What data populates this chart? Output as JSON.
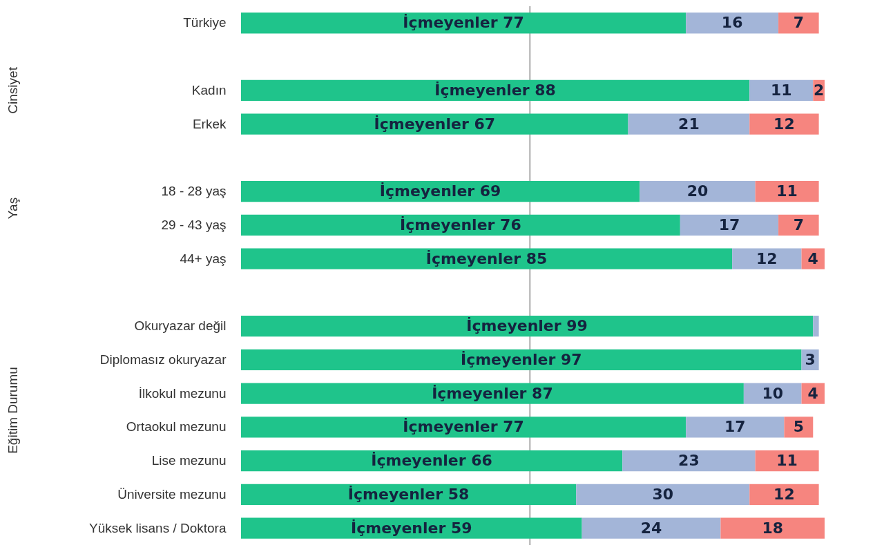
{
  "chart_data": {
    "type": "bar",
    "orientation": "horizontal",
    "stacked": true,
    "categories": [
      "Türkiye",
      null,
      "Kadın",
      "Erkek",
      null,
      "18 - 28 yaş",
      "29 - 43 yaş",
      "44+ yaş",
      null,
      "Okuryazar değil",
      "Diplomasız okuryazar",
      "İlkokul mezunu",
      "Ortaokul mezunu",
      "Lise mezunu",
      "Üniversite mezunu",
      "Yüksek lisans / Doktora"
    ],
    "series": [
      {
        "color": "#1fc48b",
        "values": [
          77,
          null,
          88,
          67,
          null,
          69,
          76,
          85,
          null,
          99,
          97,
          87,
          77,
          66,
          58,
          59
        ],
        "value_labels": [
          "İçmeyenler 77",
          null,
          "İçmeyenler 88",
          "İçmeyenler 67",
          null,
          "İçmeyenler 69",
          "İçmeyenler 76",
          "İçmeyenler 85",
          null,
          "İçmeyenler 99",
          "İçmeyenler 97",
          "İçmeyenler 87",
          "İçmeyenler 77",
          "İçmeyenler 66",
          "İçmeyenler 58",
          "İçmeyenler 59"
        ]
      },
      {
        "color": "#a3b5d8",
        "values": [
          16,
          null,
          11,
          21,
          null,
          20,
          17,
          12,
          null,
          1,
          3,
          10,
          17,
          23,
          30,
          24
        ],
        "value_labels": [
          "16",
          null,
          "11",
          "21",
          null,
          "20",
          "17",
          "12",
          null,
          null,
          "3",
          "10",
          "17",
          "23",
          "30",
          "24"
        ]
      },
      {
        "color": "#f6857f",
        "values": [
          7,
          null,
          2,
          12,
          null,
          11,
          7,
          4,
          null,
          0,
          0,
          4,
          5,
          11,
          12,
          18
        ],
        "value_labels": [
          "7",
          null,
          "2",
          "12",
          null,
          "11",
          "7",
          "4",
          null,
          null,
          null,
          "4",
          "5",
          "11",
          "12",
          "18"
        ]
      }
    ],
    "tick_labels": "y",
    "ref_lines": [
      {
        "axis": "x",
        "value": 50,
        "color": "#888888"
      }
    ],
    "annotations": [
      "Cinsiyet",
      "Yaş",
      "Eğitim Durumu"
    ]
  }
}
